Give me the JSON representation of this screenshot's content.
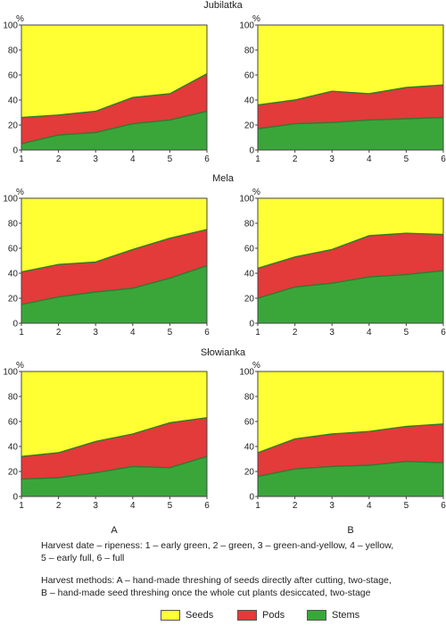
{
  "colors": {
    "seeds": "#ffff33",
    "pods": "#e33a3a",
    "stems": "#3aa63a",
    "border": "#444444"
  },
  "groups": [
    "Jubilatka",
    "Mela",
    "Słowianka"
  ],
  "methods": [
    "A",
    "B"
  ],
  "chart_data": [
    {
      "type": "area",
      "group": "Jubilatka",
      "method": "A",
      "stacked": true,
      "ylabel": "%",
      "ylim": [
        0,
        100
      ],
      "x": [
        1,
        2,
        3,
        4,
        5,
        6
      ],
      "series": [
        {
          "name": "Stems",
          "values": [
            5,
            12,
            14,
            21,
            24,
            31
          ]
        },
        {
          "name": "Pods",
          "values": [
            21,
            16,
            17,
            21,
            21,
            30
          ]
        },
        {
          "name": "Seeds",
          "values": [
            74,
            72,
            69,
            58,
            55,
            39
          ]
        }
      ]
    },
    {
      "type": "area",
      "group": "Jubilatka",
      "method": "B",
      "stacked": true,
      "ylabel": "%",
      "ylim": [
        0,
        100
      ],
      "x": [
        1,
        2,
        3,
        4,
        5,
        6
      ],
      "series": [
        {
          "name": "Stems",
          "values": [
            17,
            21,
            22,
            24,
            25,
            26
          ]
        },
        {
          "name": "Pods",
          "values": [
            19,
            19,
            25,
            21,
            25,
            26
          ]
        },
        {
          "name": "Seeds",
          "values": [
            64,
            60,
            53,
            55,
            50,
            48
          ]
        }
      ]
    },
    {
      "type": "area",
      "group": "Mela",
      "method": "A",
      "stacked": true,
      "ylabel": "%",
      "ylim": [
        0,
        100
      ],
      "x": [
        1,
        2,
        3,
        4,
        5,
        6
      ],
      "series": [
        {
          "name": "Stems",
          "values": [
            15,
            21,
            25,
            28,
            36,
            46
          ]
        },
        {
          "name": "Pods",
          "values": [
            26,
            26,
            24,
            31,
            32,
            29
          ]
        },
        {
          "name": "Seeds",
          "values": [
            59,
            53,
            51,
            41,
            32,
            25
          ]
        }
      ]
    },
    {
      "type": "area",
      "group": "Mela",
      "method": "B",
      "stacked": true,
      "ylabel": "%",
      "ylim": [
        0,
        100
      ],
      "x": [
        1,
        2,
        3,
        4,
        5,
        6
      ],
      "series": [
        {
          "name": "Stems",
          "values": [
            20,
            29,
            32,
            37,
            39,
            42
          ]
        },
        {
          "name": "Pods",
          "values": [
            24,
            24,
            27,
            33,
            33,
            29
          ]
        },
        {
          "name": "Seeds",
          "values": [
            56,
            47,
            41,
            30,
            28,
            29
          ]
        }
      ]
    },
    {
      "type": "area",
      "group": "Słowianka",
      "method": "A",
      "stacked": true,
      "ylabel": "%",
      "ylim": [
        0,
        100
      ],
      "x": [
        1,
        2,
        3,
        4,
        5,
        6
      ],
      "series": [
        {
          "name": "Stems",
          "values": [
            14,
            15,
            19,
            24,
            23,
            32
          ]
        },
        {
          "name": "Pods",
          "values": [
            18,
            20,
            25,
            26,
            36,
            31
          ]
        },
        {
          "name": "Seeds",
          "values": [
            68,
            65,
            56,
            50,
            41,
            37
          ]
        }
      ]
    },
    {
      "type": "area",
      "group": "Słowianka",
      "method": "B",
      "stacked": true,
      "ylabel": "%",
      "ylim": [
        0,
        100
      ],
      "x": [
        1,
        2,
        3,
        4,
        5,
        6
      ],
      "series": [
        {
          "name": "Stems",
          "values": [
            16,
            22,
            24,
            25,
            28,
            27
          ]
        },
        {
          "name": "Pods",
          "values": [
            19,
            24,
            26,
            27,
            28,
            31
          ]
        },
        {
          "name": "Seeds",
          "values": [
            65,
            54,
            50,
            48,
            44,
            42
          ]
        }
      ]
    }
  ],
  "caption": {
    "line1": "Harvest date – ripeness: 1 – early green, 2 – green, 3 – green-and-yellow, 4 – yellow,",
    "line2": "5 – early full, 6 – full",
    "line3": "Harvest methods: A – hand-made threshing of seeds directly after cutting, two-stage,",
    "line4": "B – hand-made seed threshing once the whole cut plants desiccated, two-stage"
  },
  "legend": [
    {
      "label": "Seeds",
      "color": "#ffff33"
    },
    {
      "label": "Pods",
      "color": "#e33a3a"
    },
    {
      "label": "Stems",
      "color": "#3aa63a"
    }
  ]
}
